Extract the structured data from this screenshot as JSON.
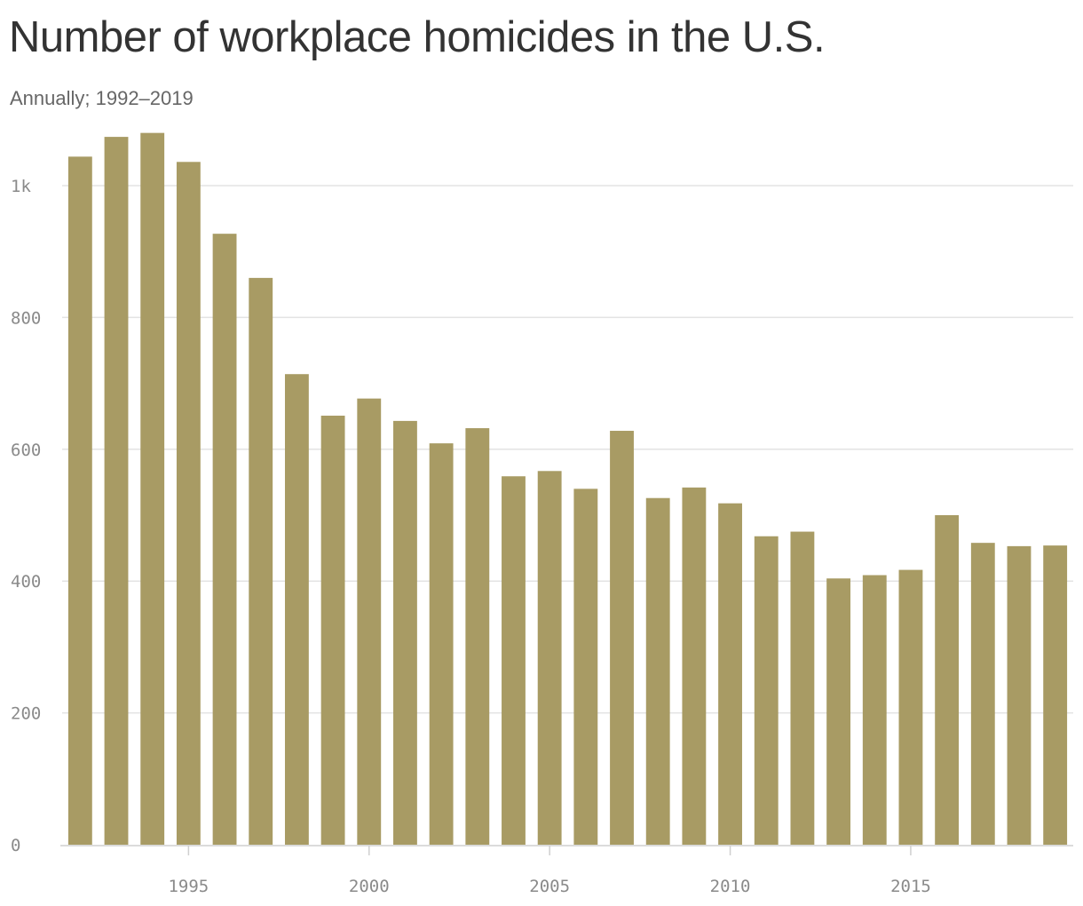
{
  "chart_data": {
    "type": "bar",
    "title": "Number of workplace homicides in the U.S.",
    "subtitle": "Annually; 1992–2019",
    "xlabel": "",
    "ylabel": "",
    "bar_color": "#a89b64",
    "grid": true,
    "categories": [
      1992,
      1993,
      1994,
      1995,
      1996,
      1997,
      1998,
      1999,
      2000,
      2001,
      2002,
      2003,
      2004,
      2005,
      2006,
      2007,
      2008,
      2009,
      2010,
      2011,
      2012,
      2013,
      2014,
      2015,
      2016,
      2017,
      2018,
      2019
    ],
    "values": [
      1044,
      1074,
      1080,
      1036,
      927,
      860,
      714,
      651,
      677,
      643,
      609,
      632,
      559,
      567,
      540,
      628,
      526,
      542,
      518,
      468,
      475,
      404,
      409,
      417,
      500,
      458,
      453,
      454
    ],
    "ylim": [
      0,
      1080
    ],
    "yticks": [
      0,
      200,
      400,
      600,
      800,
      1000
    ],
    "ytick_labels": [
      "0",
      "200",
      "400",
      "600",
      "800",
      "1k"
    ],
    "xticks": [
      1995,
      2000,
      2005,
      2010,
      2015
    ],
    "xtick_labels": [
      "1995",
      "2000",
      "2005",
      "2010",
      "2015"
    ]
  }
}
